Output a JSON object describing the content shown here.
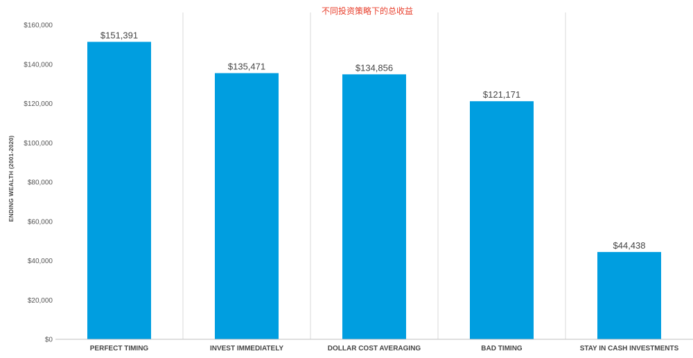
{
  "chart_data": {
    "type": "bar",
    "title": "不同投资策略下的总收益",
    "xlabel": "",
    "ylabel": "ENDING WEALTH (2001-2020)",
    "categories": [
      "PERFECT TIMING",
      "INVEST IMMEDIATELY",
      "DOLLAR COST AVERAGING",
      "BAD TIMING",
      "STAY IN CASH INVESTMENTS"
    ],
    "values": [
      151391,
      135471,
      134856,
      121171,
      44438
    ],
    "value_labels": [
      "$151,391",
      "$135,471",
      "$134,856",
      "$121,171",
      "$44,438"
    ],
    "ylim": [
      0,
      160000
    ],
    "yticks": [
      0,
      20000,
      40000,
      60000,
      80000,
      100000,
      120000,
      140000,
      160000
    ],
    "ytick_labels": [
      "$0",
      "$20,000",
      "$40,000",
      "$60,000",
      "$80,000",
      "$100,000",
      "$120,000",
      "$140,000",
      "$160,000"
    ],
    "grid": false,
    "category_separators": true,
    "legend": "none",
    "colors": {
      "bar": "#009EE0",
      "title": "#E83E2B",
      "text": "#444444",
      "tick_text": "#555555",
      "separator": "#d9d9d9",
      "baseline": "#bfbfbf"
    }
  }
}
